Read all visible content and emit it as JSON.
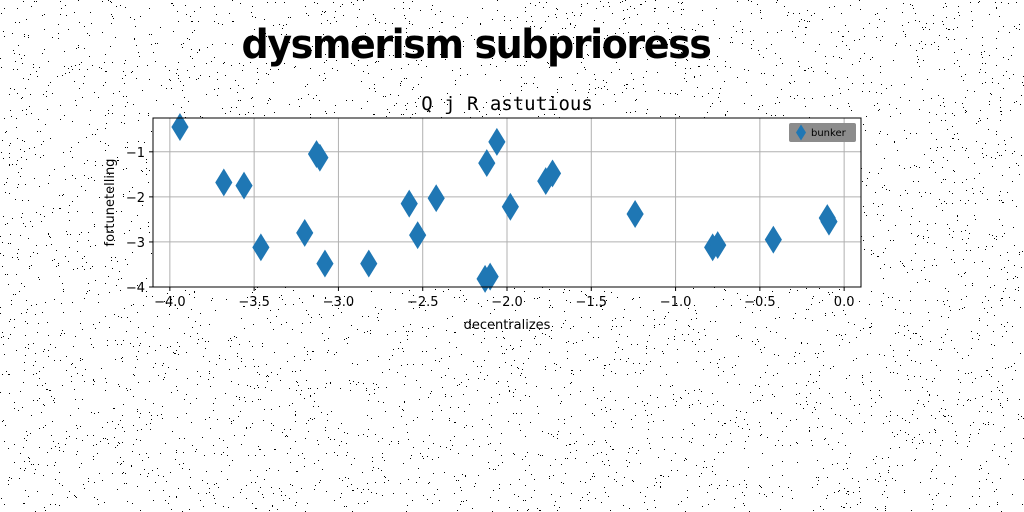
{
  "page_title": "dysmerism subprioress",
  "chart_data": {
    "type": "scatter",
    "title": "Q j R astutious",
    "xlabel": "decentralizes",
    "ylabel": "fortunetelling",
    "xlim": [
      -4.1,
      0.1
    ],
    "ylim": [
      -4.0,
      -0.25
    ],
    "xticks": [
      -4.0,
      -3.5,
      -3.0,
      -2.5,
      -2.0,
      -1.5,
      -1.0,
      -0.5,
      0.0
    ],
    "xtick_labels": [
      "−4.0",
      "−3.5",
      "−3.0",
      "−2.5",
      "−2.0",
      "−1.5",
      "−1.0",
      "−0.5",
      "0.0"
    ],
    "yticks": [
      -1,
      -2,
      -3,
      -4
    ],
    "ytick_labels": [
      "−1",
      "−2",
      "−3",
      "−4"
    ],
    "grid": true,
    "legend_position": "top-right",
    "marker": "diamond",
    "color": "#1f77b4",
    "series": [
      {
        "name": "bunker",
        "x": [
          -3.94,
          -3.68,
          -3.56,
          -3.46,
          -3.2,
          -3.13,
          -3.11,
          -3.08,
          -2.82,
          -2.58,
          -2.53,
          -2.42,
          -2.13,
          -2.12,
          -2.1,
          -2.06,
          -1.98,
          -1.77,
          -1.73,
          -1.24,
          -0.78,
          -0.75,
          -0.42,
          -0.1,
          -0.09
        ],
        "y": [
          -0.45,
          -1.68,
          -1.75,
          -3.12,
          -2.8,
          -1.05,
          -1.13,
          -3.48,
          -3.48,
          -2.15,
          -2.85,
          -2.03,
          -3.82,
          -1.25,
          -3.77,
          -0.78,
          -2.22,
          -1.65,
          -1.48,
          -2.38,
          -3.12,
          -3.07,
          -2.95,
          -2.47,
          -2.55
        ]
      }
    ]
  }
}
